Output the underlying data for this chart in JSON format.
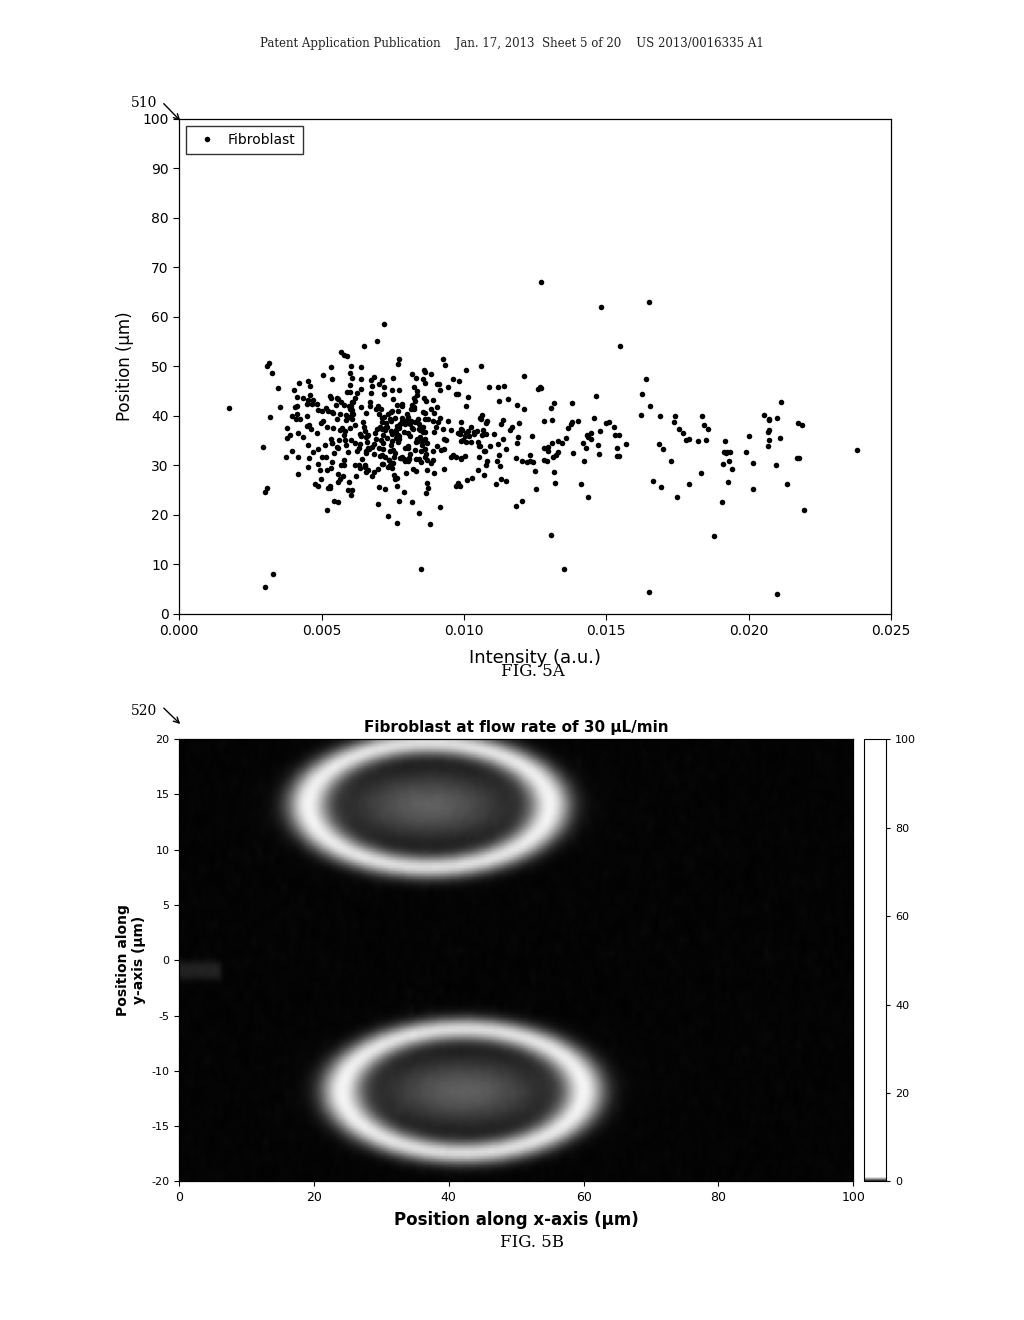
{
  "header_text": "Patent Application Publication    Jan. 17, 2013  Sheet 5 of 20    US 2013/0016335 A1",
  "fig_label_510": "510",
  "fig_label_520": "520",
  "fig5a_label": "FIG. 5A",
  "fig5b_label": "FIG. 5B",
  "scatter_xlabel": "Intensity (a.u.)",
  "scatter_ylabel": "Position (μm)",
  "scatter_legend": "Fibroblast",
  "scatter_xlim": [
    0.0,
    0.025
  ],
  "scatter_ylim": [
    0,
    100
  ],
  "scatter_xticks": [
    0.0,
    0.005,
    0.01,
    0.015,
    0.02,
    0.025
  ],
  "scatter_xtick_labels": [
    "0.000",
    "0.005",
    "0.010",
    "0.015",
    "0.020",
    "0.025"
  ],
  "scatter_yticks": [
    0,
    10,
    20,
    30,
    40,
    50,
    60,
    70,
    80,
    90,
    100
  ],
  "scatter_ytick_labels": [
    "0",
    "10",
    "20",
    "30",
    "40",
    "50",
    "60",
    "70",
    "80",
    "90",
    "100"
  ],
  "scatter_dot_color": "#000000",
  "scatter_dot_size": 16,
  "colormap_title": "Fibroblast at flow rate of 30 μL/min",
  "colormap_xlabel": "Position along x-axis (μm)",
  "colormap_ylabel": "Position along\ny-axis (μm)",
  "colormap_xlim": [
    0,
    100
  ],
  "colormap_ylim": [
    -20,
    20
  ],
  "colormap_xticks": [
    0,
    20,
    40,
    60,
    80,
    100
  ],
  "colormap_yticks": [
    -20,
    -15,
    -10,
    -5,
    0,
    5,
    10,
    15,
    20
  ],
  "colormap_cbar_ticks": [
    0,
    20,
    40,
    60,
    80,
    100
  ],
  "background_color": "#ffffff",
  "seed": 42
}
